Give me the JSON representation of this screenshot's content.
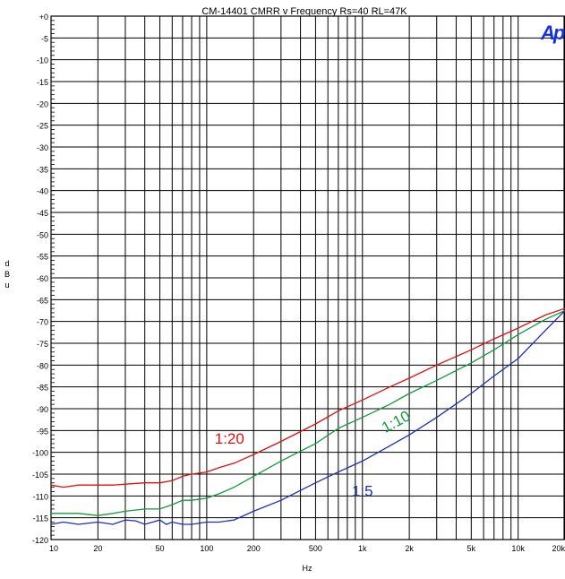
{
  "chart_data": {
    "type": "line",
    "title": "CM-14401 CMRR v Frequency Rs=40  RL=47K",
    "xlabel": "Hz",
    "ylabel": "dBu",
    "xscale": "log",
    "xlim": [
      10,
      20000
    ],
    "ylim": [
      -120,
      0
    ],
    "grid": true,
    "logo": "Ap",
    "x_ticks": [
      {
        "value": 10,
        "label": "10"
      },
      {
        "value": 20,
        "label": "20"
      },
      {
        "value": 50,
        "label": "50"
      },
      {
        "value": 100,
        "label": "100"
      },
      {
        "value": 200,
        "label": "200"
      },
      {
        "value": 500,
        "label": "500"
      },
      {
        "value": 1000,
        "label": "1k"
      },
      {
        "value": 2000,
        "label": "2k"
      },
      {
        "value": 5000,
        "label": "5k"
      },
      {
        "value": 10000,
        "label": "10k"
      },
      {
        "value": 20000,
        "label": "20k"
      }
    ],
    "y_ticks": [
      {
        "value": 0,
        "label": "+0"
      },
      {
        "value": -5,
        "label": "-5"
      },
      {
        "value": -10,
        "label": "-10"
      },
      {
        "value": -15,
        "label": "-15"
      },
      {
        "value": -20,
        "label": "-20"
      },
      {
        "value": -25,
        "label": "-25"
      },
      {
        "value": -30,
        "label": "-30"
      },
      {
        "value": -35,
        "label": "-35"
      },
      {
        "value": -40,
        "label": "-40"
      },
      {
        "value": -45,
        "label": "-45"
      },
      {
        "value": -50,
        "label": "-50"
      },
      {
        "value": -55,
        "label": "-55"
      },
      {
        "value": -60,
        "label": "-60"
      },
      {
        "value": -65,
        "label": "-65"
      },
      {
        "value": -70,
        "label": "-70"
      },
      {
        "value": -75,
        "label": "-75"
      },
      {
        "value": -80,
        "label": "-80"
      },
      {
        "value": -85,
        "label": "-85"
      },
      {
        "value": -90,
        "label": "-90"
      },
      {
        "value": -95,
        "label": "-95"
      },
      {
        "value": -100,
        "label": "-100"
      },
      {
        "value": -105,
        "label": "-105"
      },
      {
        "value": -110,
        "label": "-110"
      },
      {
        "value": -115,
        "label": "-115"
      },
      {
        "value": -120,
        "label": "-120"
      }
    ],
    "series": [
      {
        "name": "1:20",
        "color": "#e01010",
        "label_at": {
          "x": 140,
          "y": -98
        },
        "points": [
          [
            10,
            -107.5
          ],
          [
            12,
            -108
          ],
          [
            15,
            -107.5
          ],
          [
            20,
            -107.5
          ],
          [
            25,
            -107.5
          ],
          [
            30,
            -107.3
          ],
          [
            40,
            -107
          ],
          [
            50,
            -107
          ],
          [
            60,
            -106.5
          ],
          [
            70,
            -105.5
          ],
          [
            80,
            -105
          ],
          [
            100,
            -104.5
          ],
          [
            120,
            -103.5
          ],
          [
            150,
            -102.5
          ],
          [
            200,
            -100.5
          ],
          [
            300,
            -97.5
          ],
          [
            500,
            -93.5
          ],
          [
            700,
            -90.5
          ],
          [
            1000,
            -88
          ],
          [
            1500,
            -85
          ],
          [
            2000,
            -83
          ],
          [
            3000,
            -80
          ],
          [
            5000,
            -76.5
          ],
          [
            7000,
            -74
          ],
          [
            10000,
            -71.5
          ],
          [
            15000,
            -68.5
          ],
          [
            20000,
            -67
          ]
        ]
      },
      {
        "name": "1:10",
        "color": "#139a3a",
        "label_at": {
          "x": 1700,
          "y": -94
        },
        "points": [
          [
            10,
            -114
          ],
          [
            15,
            -114
          ],
          [
            20,
            -114.5
          ],
          [
            25,
            -114
          ],
          [
            30,
            -113.5
          ],
          [
            40,
            -113
          ],
          [
            50,
            -113
          ],
          [
            60,
            -112
          ],
          [
            70,
            -111
          ],
          [
            80,
            -111
          ],
          [
            100,
            -110.5
          ],
          [
            120,
            -109.5
          ],
          [
            150,
            -108
          ],
          [
            200,
            -105.5
          ],
          [
            300,
            -102
          ],
          [
            500,
            -98
          ],
          [
            700,
            -94.5
          ],
          [
            1000,
            -92
          ],
          [
            1500,
            -89
          ],
          [
            2000,
            -86.5
          ],
          [
            3000,
            -83.5
          ],
          [
            5000,
            -79.5
          ],
          [
            7000,
            -76.5
          ],
          [
            10000,
            -73
          ],
          [
            15000,
            -69.5
          ],
          [
            20000,
            -67.5
          ]
        ]
      },
      {
        "name": "1:5",
        "color": "#1b2fb8",
        "label_at": {
          "x": 1000,
          "y": -110
        },
        "points": [
          [
            10,
            -116.5
          ],
          [
            12,
            -116
          ],
          [
            15,
            -116.5
          ],
          [
            20,
            -116
          ],
          [
            25,
            -116.5
          ],
          [
            30,
            -115.5
          ],
          [
            35,
            -115.7
          ],
          [
            40,
            -116.5
          ],
          [
            45,
            -116
          ],
          [
            50,
            -115.5
          ],
          [
            55,
            -116.5
          ],
          [
            60,
            -116
          ],
          [
            70,
            -116.5
          ],
          [
            80,
            -116.5
          ],
          [
            100,
            -116
          ],
          [
            120,
            -116
          ],
          [
            150,
            -115.5
          ],
          [
            200,
            -113.5
          ],
          [
            300,
            -111
          ],
          [
            500,
            -107
          ],
          [
            700,
            -104.5
          ],
          [
            1000,
            -102
          ],
          [
            1500,
            -98.5
          ],
          [
            2000,
            -96
          ],
          [
            3000,
            -92
          ],
          [
            5000,
            -86.5
          ],
          [
            7000,
            -82.5
          ],
          [
            10000,
            -78.5
          ],
          [
            15000,
            -72
          ],
          [
            20000,
            -67.5
          ]
        ]
      }
    ]
  }
}
